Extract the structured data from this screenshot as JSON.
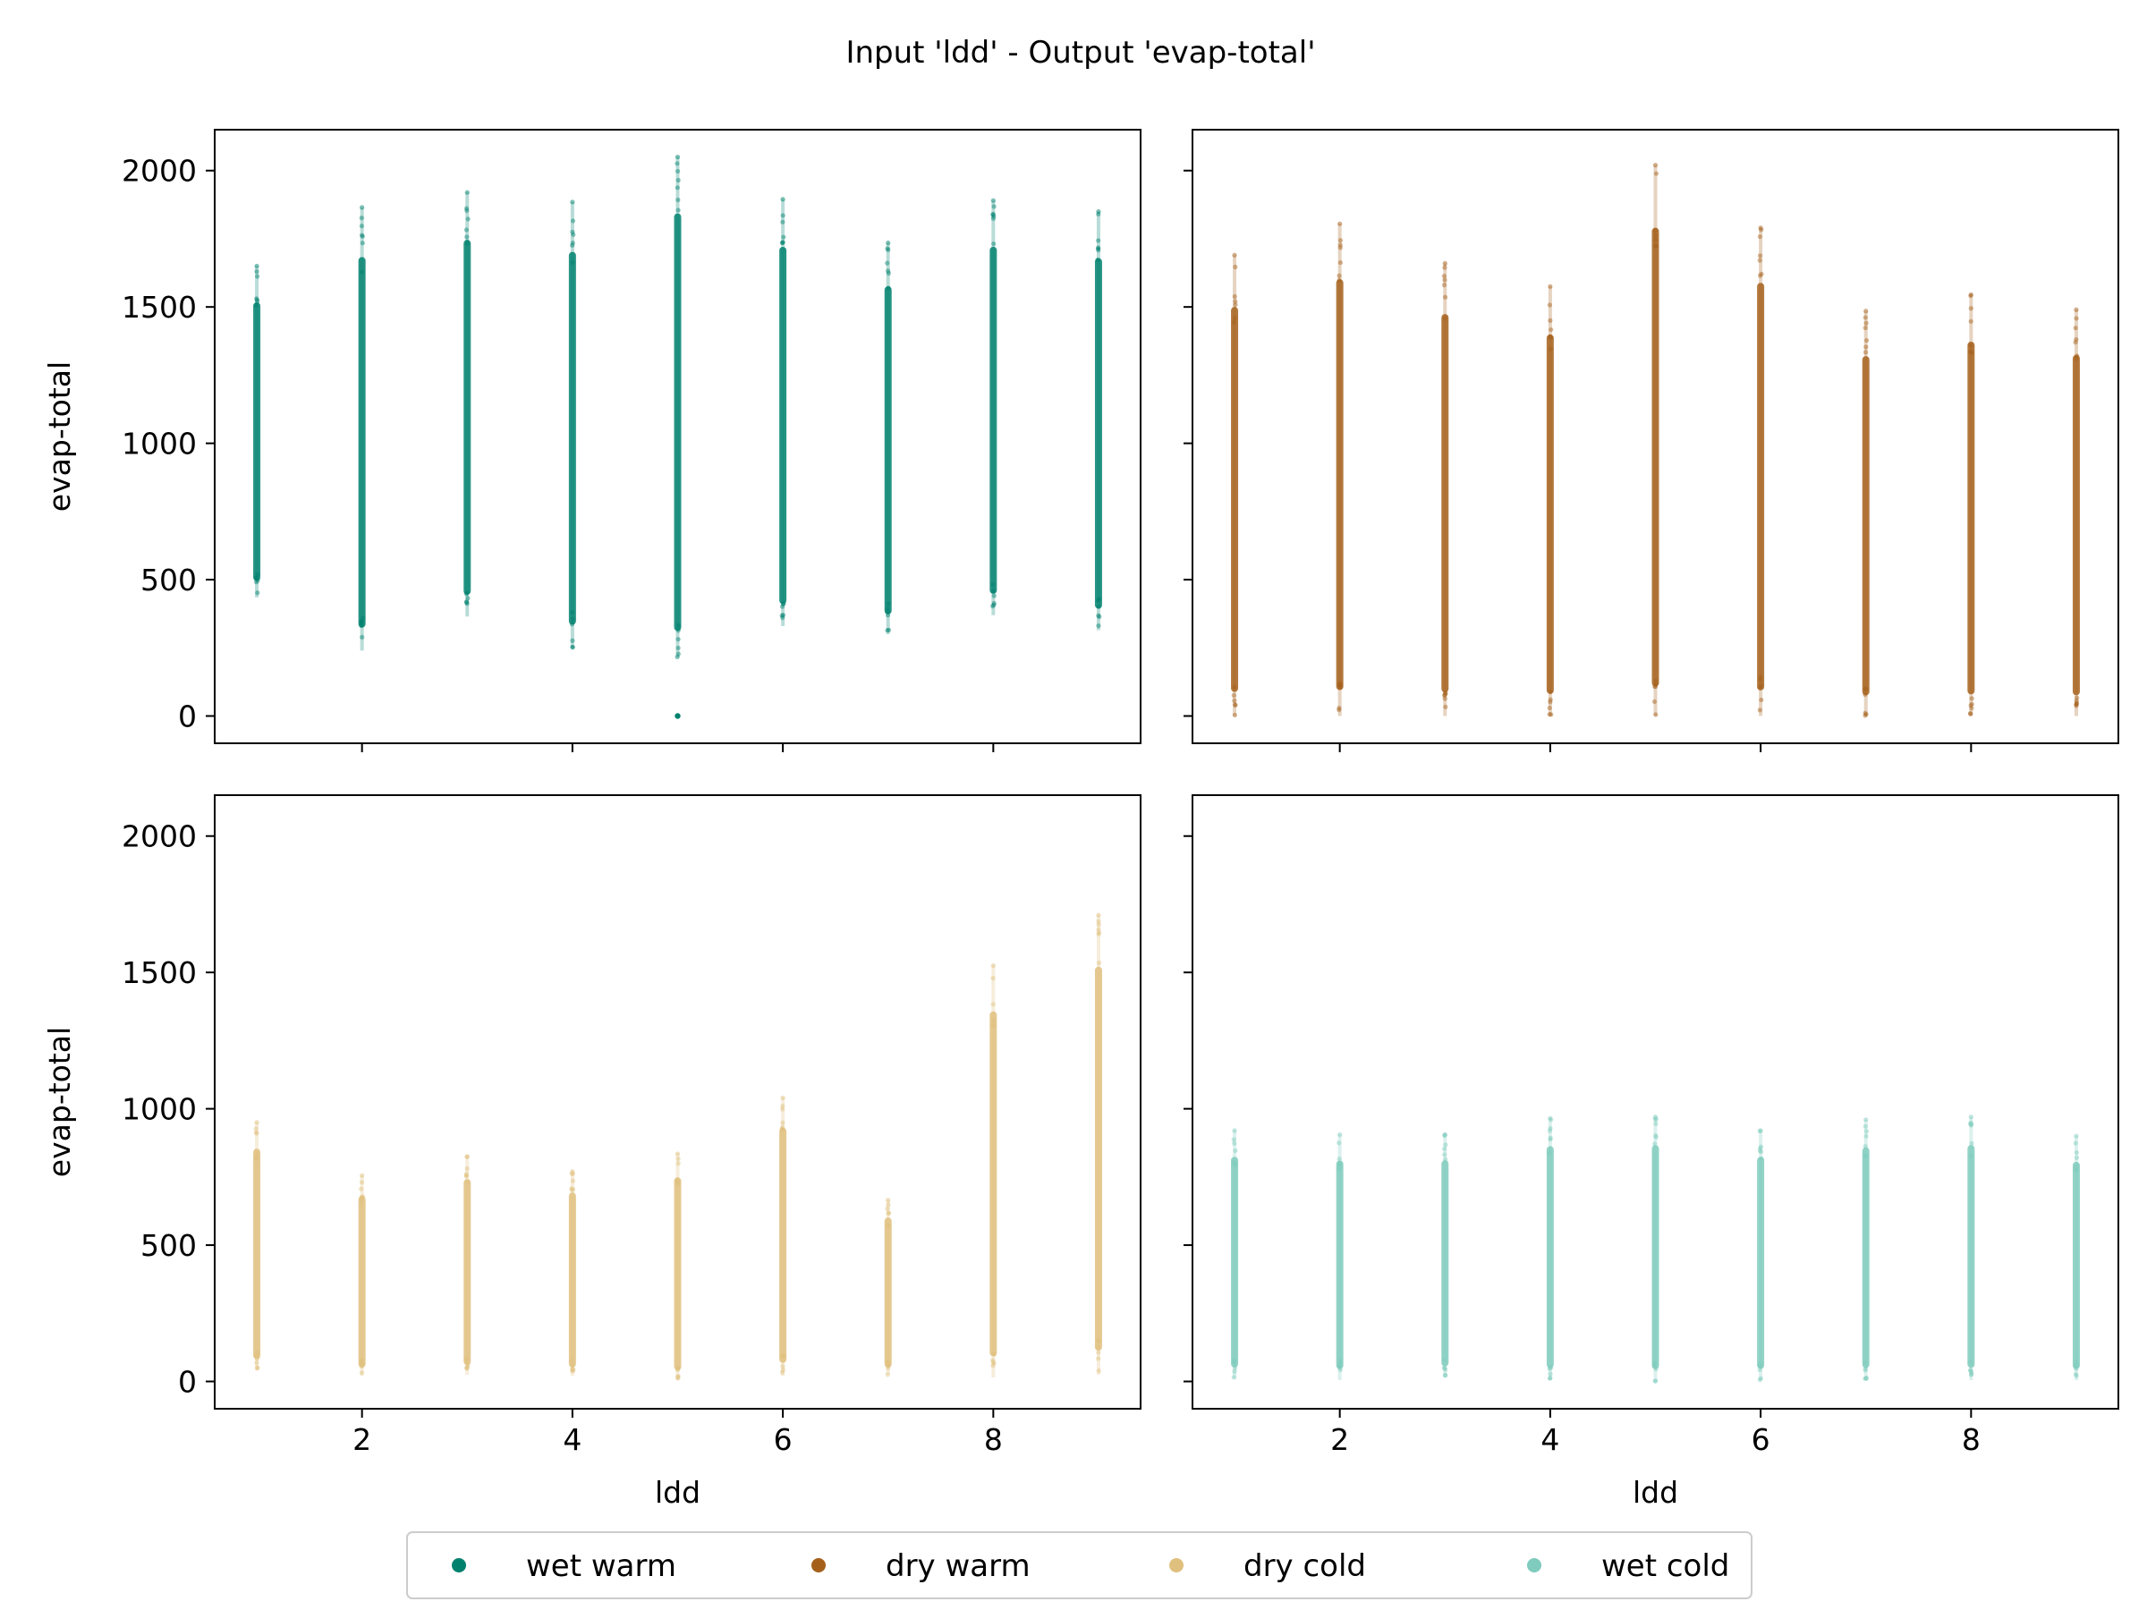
{
  "chart_data": {
    "type": "scatter",
    "title": "Input 'ldd' - Output 'evap-total'",
    "x_categories": [
      1,
      2,
      3,
      4,
      5,
      6,
      7,
      8,
      9
    ],
    "shared_y_ticks": [
      0,
      500,
      1000,
      1500,
      2000
    ],
    "legend": {
      "placement": "bottom-center",
      "entries": [
        {
          "name": "wet warm",
          "color": "#00816e"
        },
        {
          "name": "dry warm",
          "color": "#a4601b"
        },
        {
          "name": "dry cold",
          "color": "#e0c07e"
        },
        {
          "name": "wet cold",
          "color": "#7fcbbd"
        }
      ]
    },
    "panels": [
      {
        "position": "top-left",
        "series": "wet warm",
        "color": "#00816e",
        "ylabel": "evap-total",
        "xlabel": "",
        "xlim": [
          0.6,
          9.4
        ],
        "ylim": [
          -100,
          2150
        ],
        "xticks": [
          2,
          4,
          6,
          8
        ],
        "show_xtick_labels": false,
        "show_ytick_labels": true,
        "columns": [
          {
            "x": 1,
            "min": 435,
            "max": 1650
          },
          {
            "x": 2,
            "min": 240,
            "max": 1865
          },
          {
            "x": 3,
            "min": 365,
            "max": 1920
          },
          {
            "x": 4,
            "min": 250,
            "max": 1885
          },
          {
            "x": 5,
            "min": 215,
            "max": 2050,
            "extra": [
              0
            ]
          },
          {
            "x": 6,
            "min": 330,
            "max": 1895
          },
          {
            "x": 7,
            "min": 300,
            "max": 1735
          },
          {
            "x": 8,
            "min": 370,
            "max": 1890
          },
          {
            "x": 9,
            "min": 315,
            "max": 1850
          }
        ]
      },
      {
        "position": "top-right",
        "series": "dry warm",
        "color": "#a4601b",
        "ylabel": "",
        "xlabel": "",
        "xlim": [
          0.6,
          9.4
        ],
        "ylim": [
          -100,
          2150
        ],
        "xticks": [
          2,
          4,
          6,
          8
        ],
        "show_xtick_labels": false,
        "show_ytick_labels": false,
        "columns": [
          {
            "x": 1,
            "min": 0,
            "max": 1690
          },
          {
            "x": 2,
            "min": 0,
            "max": 1805
          },
          {
            "x": 3,
            "min": 0,
            "max": 1660
          },
          {
            "x": 4,
            "min": 0,
            "max": 1575
          },
          {
            "x": 5,
            "min": 0,
            "max": 2020
          },
          {
            "x": 6,
            "min": 0,
            "max": 1790
          },
          {
            "x": 7,
            "min": 0,
            "max": 1485
          },
          {
            "x": 8,
            "min": 0,
            "max": 1545
          },
          {
            "x": 9,
            "min": 0,
            "max": 1490
          }
        ]
      },
      {
        "position": "bottom-left",
        "series": "dry cold",
        "color": "#e0c07e",
        "ylabel": "evap-total",
        "xlabel": "ldd",
        "xlim": [
          0.6,
          9.4
        ],
        "ylim": [
          -100,
          2150
        ],
        "xticks": [
          2,
          4,
          6,
          8
        ],
        "show_xtick_labels": true,
        "show_ytick_labels": true,
        "columns": [
          {
            "x": 1,
            "min": 40,
            "max": 950
          },
          {
            "x": 2,
            "min": 20,
            "max": 755
          },
          {
            "x": 3,
            "min": 25,
            "max": 825
          },
          {
            "x": 4,
            "min": 20,
            "max": 770
          },
          {
            "x": 5,
            "min": 5,
            "max": 835
          },
          {
            "x": 6,
            "min": 20,
            "max": 1040
          },
          {
            "x": 7,
            "min": 25,
            "max": 665
          },
          {
            "x": 8,
            "min": 15,
            "max": 1525
          },
          {
            "x": 9,
            "min": 25,
            "max": 1710
          }
        ]
      },
      {
        "position": "bottom-right",
        "series": "wet cold",
        "color": "#7fcbbd",
        "ylabel": "",
        "xlabel": "ldd",
        "xlim": [
          0.6,
          9.4
        ],
        "ylim": [
          -100,
          2150
        ],
        "xticks": [
          2,
          4,
          6,
          8
        ],
        "show_xtick_labels": true,
        "show_ytick_labels": false,
        "columns": [
          {
            "x": 1,
            "min": 10,
            "max": 920
          },
          {
            "x": 2,
            "min": 5,
            "max": 905
          },
          {
            "x": 3,
            "min": 15,
            "max": 905
          },
          {
            "x": 4,
            "min": 5,
            "max": 965
          },
          {
            "x": 5,
            "min": 0,
            "max": 970
          },
          {
            "x": 6,
            "min": 5,
            "max": 920
          },
          {
            "x": 7,
            "min": 5,
            "max": 960
          },
          {
            "x": 8,
            "min": 5,
            "max": 970
          },
          {
            "x": 9,
            "min": 5,
            "max": 900
          }
        ]
      }
    ]
  }
}
